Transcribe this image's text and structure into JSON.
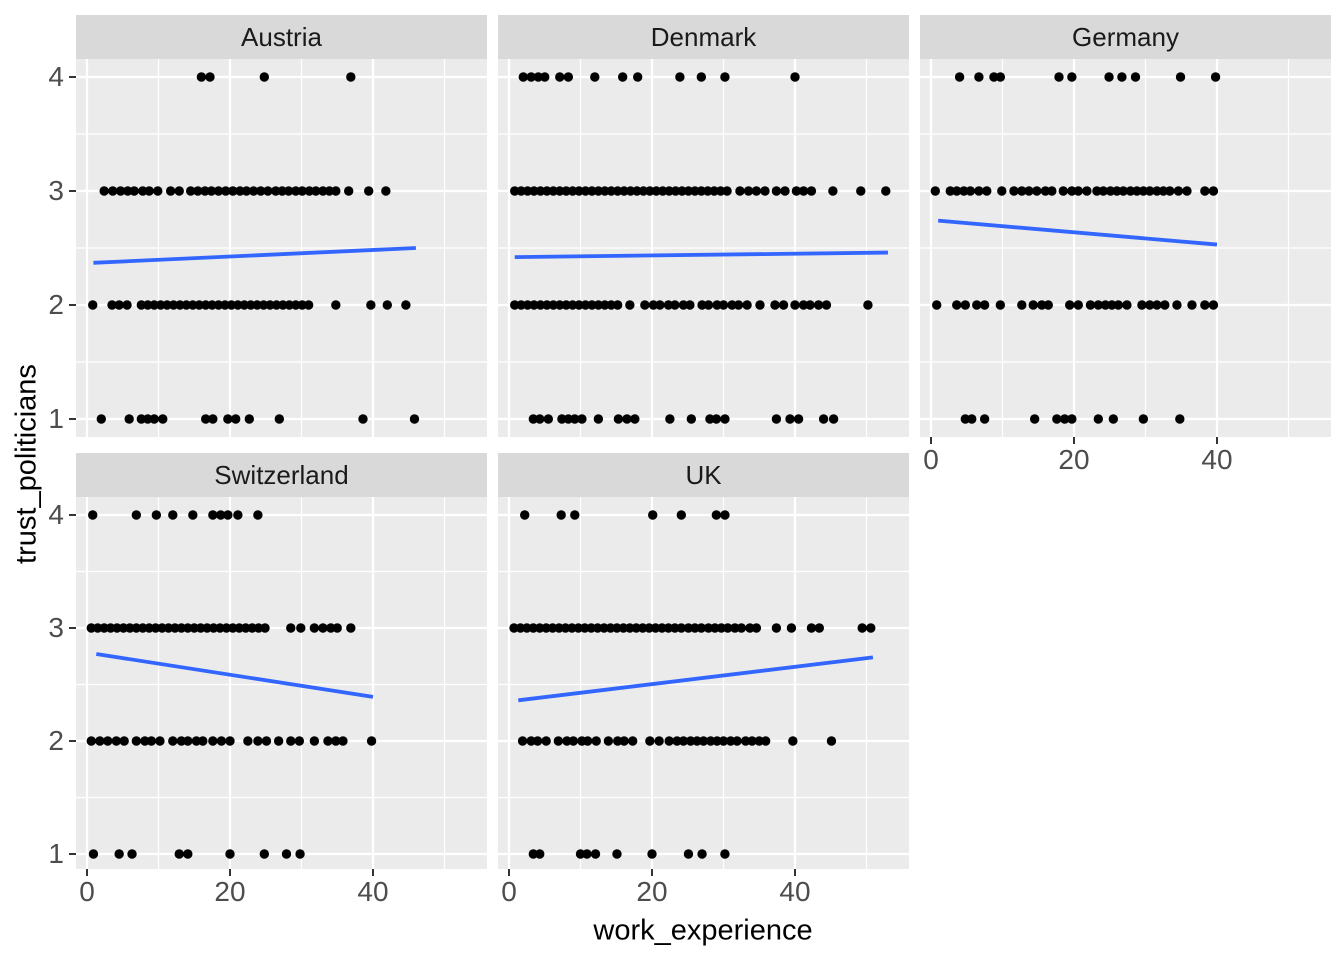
{
  "figure": {
    "x_axis_title": "work_experience",
    "y_axis_title": "trust_politicians",
    "x_ticks": [
      "0",
      "20",
      "40"
    ],
    "y_ticks": [
      "1",
      "2",
      "3",
      "4"
    ]
  },
  "colors": {
    "panel_background": "#EBEBEB",
    "strip_background": "#D9D9D9",
    "grid": "#FFFFFF",
    "point": "#000000",
    "smooth_line": "#3366FF",
    "tick_text": "#4D4D4D",
    "axis_title_text": "#000000",
    "strip_text": "#1A1A1A",
    "tick_mark": "#333333"
  },
  "chart_data": {
    "type": "scatter",
    "title": "",
    "xlabel": "work_experience",
    "ylabel": "trust_politicians",
    "facet_variable_values": [
      "Austria",
      "Denmark",
      "Germany",
      "Switzerland",
      "UK"
    ],
    "x_tick_values": [
      0,
      20,
      40
    ],
    "y_tick_values": [
      1,
      2,
      3,
      4
    ],
    "x_minor_gridlines": [
      10,
      30,
      50
    ],
    "y_minor_gridlines": [
      1.5,
      2.5,
      3.5
    ],
    "x_range": [
      -1.5,
      56
    ],
    "y_range": [
      0.84,
      4.16
    ],
    "grid": true,
    "legend": false,
    "facets": [
      {
        "name": "Austria",
        "row": 0,
        "col": 0,
        "show_x_axis": false,
        "points": {
          "4": [
            16,
            17.2,
            24.8,
            36.9
          ],
          "3": [
            2.4,
            3.6,
            4.7,
            5.7,
            6.6,
            7.8,
            8.7,
            9.9,
            11.7,
            12.9,
            14.5,
            15.5,
            16.5,
            17.4,
            18.4,
            19.4,
            20.4,
            21.4,
            22.3,
            23.3,
            24.3,
            25.3,
            26.4,
            27.3,
            28.2,
            29.2,
            30.1,
            31.1,
            32,
            33,
            33.9,
            34.8,
            36.6,
            39.4,
            41.8
          ],
          "2": [
            0.8,
            3.5,
            4.5,
            5.6,
            7.6,
            8.5,
            9.4,
            10.3,
            11.2,
            12.1,
            13,
            13.9,
            14.8,
            15.7,
            16.6,
            17.5,
            18.4,
            19.3,
            20.2,
            21.1,
            22,
            22.9,
            23.8,
            24.7,
            25.6,
            26.5,
            27.4,
            28.3,
            29.2,
            30.1,
            31,
            34.8,
            39.7,
            42,
            44.6
          ],
          "1": [
            2,
            5.9,
            7.6,
            8.5,
            9.4,
            10.6,
            16.6,
            17.6,
            19.7,
            20.8,
            22.7,
            26.9,
            38.6,
            45.8
          ]
        },
        "smooth": {
          "x1": 0.9,
          "y1": 2.37,
          "x2": 46,
          "y2": 2.5
        }
      },
      {
        "name": "Denmark",
        "row": 0,
        "col": 1,
        "show_x_axis": false,
        "points": {
          "4": [
            2,
            3.1,
            4.1,
            5,
            7.1,
            8.3,
            12,
            15.9,
            18,
            23.9,
            26.9,
            30.2,
            40
          ],
          "3": [
            0.8,
            1.7,
            2.6,
            3.5,
            4.4,
            5.3,
            6.2,
            7.1,
            8,
            8.9,
            9.8,
            10.7,
            11.6,
            12.5,
            13.4,
            14.3,
            15.2,
            16.1,
            17,
            17.9,
            18.8,
            19.7,
            20.6,
            21.5,
            22.4,
            23.3,
            24.2,
            25.1,
            26,
            26.9,
            27.8,
            28.7,
            29.6,
            30.5,
            32.3,
            33.5,
            34.6,
            35.8,
            37.4,
            38.6,
            40.2,
            41.2,
            42.3,
            45.3,
            49.2,
            52.7
          ],
          "2": [
            0.8,
            1.7,
            2.6,
            3.5,
            4.4,
            5.3,
            6.2,
            7.1,
            8,
            8.9,
            9.8,
            10.7,
            11.6,
            12.5,
            13.4,
            14.3,
            15.2,
            16.9,
            19,
            20.2,
            21.1,
            22.3,
            23.2,
            24.4,
            25.3,
            27,
            27.9,
            29.1,
            30,
            31.2,
            32.1,
            33.3,
            35.1,
            37.2,
            38.4,
            40,
            41.2,
            42.1,
            43.3,
            44.4,
            50.2
          ],
          "1": [
            3.4,
            4.3,
            5.5,
            7.4,
            8.3,
            9.2,
            10.2,
            12.5,
            15.3,
            16.5,
            17.6,
            22.5,
            25.5,
            28.1,
            29,
            30.2,
            37.4,
            39.3,
            40.5,
            44,
            45.4
          ]
        },
        "smooth": {
          "x1": 0.8,
          "y1": 2.42,
          "x2": 53,
          "y2": 2.46
        }
      },
      {
        "name": "Germany",
        "row": 0,
        "col": 2,
        "show_x_axis": true,
        "points": {
          "4": [
            4,
            6.7,
            8.8,
            9.7,
            17.9,
            19.7,
            24.9,
            26.7,
            28.6,
            34.9,
            39.8
          ],
          "3": [
            0.6,
            2.7,
            3.6,
            4.6,
            5.5,
            6.7,
            7.8,
            9.9,
            11.6,
            12.7,
            13.7,
            14.8,
            16,
            16.9,
            18.5,
            19.7,
            20.6,
            21.8,
            23.2,
            24.1,
            25.1,
            26,
            26.9,
            27.9,
            28.8,
            29.7,
            30.6,
            31.6,
            32.5,
            33.4,
            34.6,
            35.8,
            38.3,
            39.5
          ],
          "2": [
            0.8,
            3.6,
            4.8,
            6.4,
            7.5,
            9.7,
            12.7,
            14.3,
            15.5,
            16.4,
            19.4,
            20.6,
            22.3,
            23.4,
            24.4,
            25.3,
            26.2,
            27.4,
            29.5,
            30.6,
            31.6,
            32.7,
            34.4,
            36.5,
            38.3,
            39.5
          ],
          "1": [
            4.8,
            5.7,
            7.5,
            14.5,
            17.6,
            18.7,
            19.7,
            23.4,
            25.5,
            29.7,
            34.8
          ]
        },
        "smooth": {
          "x1": 1,
          "y1": 2.74,
          "x2": 40,
          "y2": 2.53
        }
      },
      {
        "name": "Switzerland",
        "row": 1,
        "col": 0,
        "show_x_axis": true,
        "points": {
          "4": [
            0.8,
            6.9,
            9.7,
            12,
            14.8,
            17.6,
            18.7,
            19.7,
            21.1,
            23.9
          ],
          "3": [
            0.6,
            1.5,
            2.4,
            3.3,
            4.2,
            5.1,
            6,
            6.9,
            7.8,
            8.7,
            9.6,
            10.5,
            11.4,
            12.3,
            13.2,
            14.1,
            15,
            15.9,
            16.8,
            17.7,
            18.6,
            19.5,
            20.4,
            21.3,
            22.2,
            23.1,
            24,
            24.9,
            28.5,
            29.9,
            31.8,
            33,
            34.1,
            35,
            36.9
          ],
          "2": [
            0.6,
            1.8,
            2.9,
            4.1,
            5.2,
            6.9,
            8.1,
            9,
            10.2,
            12,
            13.2,
            14.1,
            15.3,
            16.2,
            17.6,
            18.8,
            20,
            22.5,
            23.9,
            25.1,
            26.8,
            28.5,
            29.7,
            31.8,
            33.7,
            34.8,
            35.8,
            39.8
          ],
          "1": [
            0.9,
            4.5,
            6.3,
            12.9,
            14.1,
            20,
            24.8,
            27.9,
            29.8
          ]
        },
        "smooth": {
          "x1": 1.3,
          "y1": 2.77,
          "x2": 40,
          "y2": 2.39
        }
      },
      {
        "name": "UK",
        "row": 1,
        "col": 1,
        "show_x_axis": true,
        "points": {
          "4": [
            2.2,
            7.3,
            9.2,
            20.1,
            24.1,
            29,
            30.2
          ],
          "3": [
            0.7,
            1.6,
            2.5,
            3.4,
            4.3,
            5.2,
            6.1,
            7,
            7.9,
            8.8,
            9.7,
            10.6,
            11.5,
            12.4,
            13.3,
            14.2,
            15.1,
            16,
            16.9,
            17.8,
            18.7,
            19.6,
            20.5,
            21.4,
            22.3,
            23.2,
            24.1,
            25.1,
            26,
            26.9,
            27.9,
            28.8,
            29.7,
            30.6,
            31.6,
            32.5,
            33.7,
            34.6,
            37.4,
            39.5,
            42.3,
            43.4,
            49.4,
            50.6
          ],
          "2": [
            1.9,
            3.1,
            4,
            5.2,
            6.9,
            8.1,
            9,
            10.2,
            11,
            12.2,
            13.9,
            15.2,
            16.1,
            17.3,
            19.7,
            21,
            22.4,
            23.5,
            24.4,
            25.4,
            26.3,
            27.2,
            28.2,
            29.1,
            30,
            31,
            31.9,
            33.1,
            34,
            35,
            35.9,
            39.7,
            45.1
          ],
          "1": [
            3.4,
            4.3,
            10,
            10.9,
            12.1,
            15.1,
            20,
            25.1,
            27,
            30.2
          ]
        },
        "smooth": {
          "x1": 1.3,
          "y1": 2.36,
          "x2": 50.9,
          "y2": 2.74
        }
      }
    ]
  }
}
